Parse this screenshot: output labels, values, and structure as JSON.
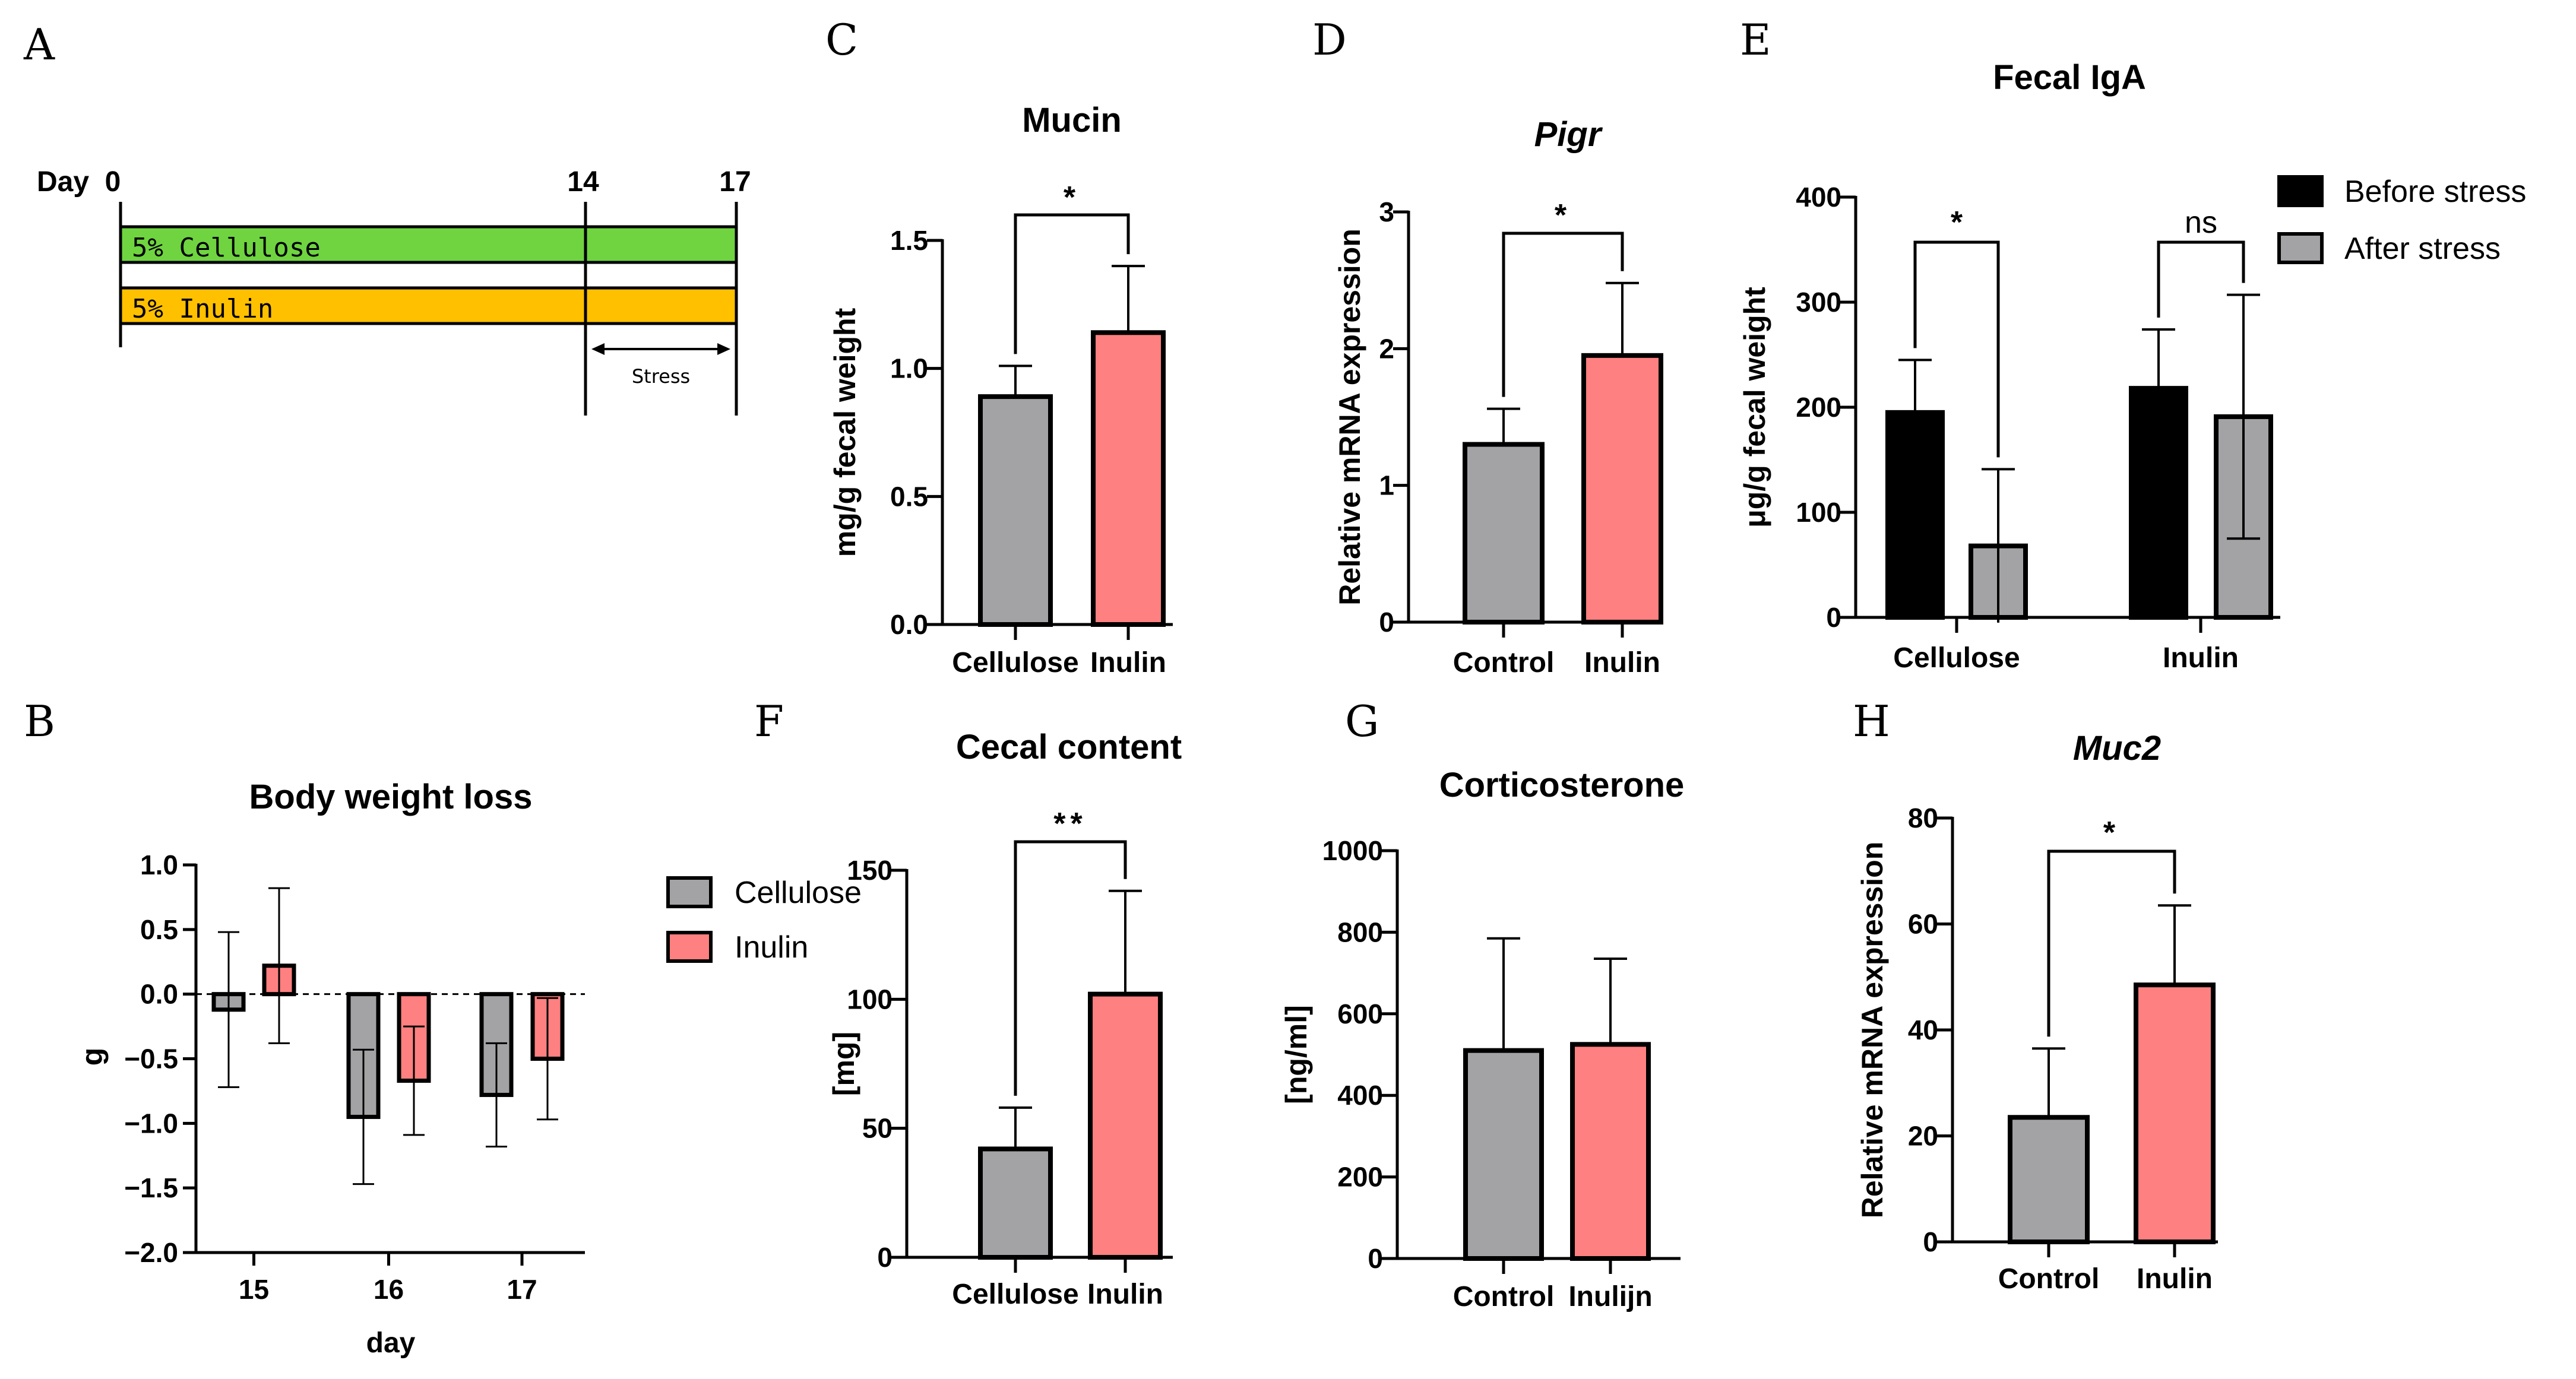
{
  "colors": {
    "gray": "#a3a3a6",
    "pink": "#ff8080",
    "black": "#000000",
    "green": "#6fd440",
    "yellow": "#ffc000"
  },
  "panels": {
    "A": {
      "label": "A",
      "day_label": "Day",
      "days": [
        "0",
        "14",
        "17"
      ],
      "bars": [
        "5% Cellulose",
        "5% Inulin"
      ],
      "stress_label": "Stress"
    },
    "B": {
      "label": "B"
    },
    "C": {
      "label": "C"
    },
    "D": {
      "label": "D"
    },
    "E": {
      "label": "E"
    },
    "F": {
      "label": "F"
    },
    "G": {
      "label": "G"
    },
    "H": {
      "label": "H"
    }
  },
  "chart_data": [
    {
      "id": "B",
      "type": "bar",
      "title": "Body weight loss",
      "xlabel": "day",
      "ylabel": "g",
      "ylim": [
        -2.0,
        1.0
      ],
      "yticks": [
        "1.0",
        "0.5",
        "0.0",
        "-0.5",
        "-1.0",
        "-1.5",
        "-2.0"
      ],
      "categories": [
        "15",
        "16",
        "17"
      ],
      "series": [
        {
          "name": "Cellulose",
          "values": [
            -0.12,
            -0.95,
            -0.78
          ],
          "errors": [
            0.6,
            0.52,
            0.4
          ]
        },
        {
          "name": "Inulin",
          "values": [
            0.22,
            -0.67,
            -0.5
          ],
          "errors": [
            0.6,
            0.42,
            0.47
          ]
        }
      ],
      "legend": [
        "Cellulose",
        "Inulin"
      ]
    },
    {
      "id": "C",
      "type": "bar",
      "title": "Mucin",
      "ylabel": "mg/g fecal weight",
      "ylim": [
        0,
        1.5
      ],
      "yticks": [
        "0.0",
        "0.5",
        "1.0",
        "1.5"
      ],
      "categories": [
        "Cellulose",
        "Inulin"
      ],
      "values": [
        0.89,
        1.14
      ],
      "errors": [
        0.12,
        0.26
      ],
      "significance": "*"
    },
    {
      "id": "D",
      "type": "bar",
      "title": "Pigr",
      "ylabel": "Relative mRNA expression",
      "ylim": [
        0,
        3
      ],
      "yticks": [
        "0",
        "1",
        "2",
        "3"
      ],
      "categories": [
        "Control",
        "Inulin"
      ],
      "values": [
        1.3,
        1.95
      ],
      "errors": [
        0.26,
        0.53
      ],
      "significance": "*"
    },
    {
      "id": "E",
      "type": "bar",
      "title": "Fecal IgA",
      "ylabel": "μg/g fecal weight",
      "ylim": [
        0,
        400
      ],
      "yticks": [
        "0",
        "100",
        "200",
        "300",
        "400"
      ],
      "categories": [
        "Cellulose",
        "Inulin"
      ],
      "series": [
        {
          "name": "Before stress",
          "values": [
            195,
            218
          ],
          "errors": [
            50,
            56
          ]
        },
        {
          "name": "After stress",
          "values": [
            68,
            191
          ],
          "errors": [
            73,
            116
          ]
        }
      ],
      "significance": [
        "*",
        "ns"
      ],
      "legend": [
        "Before stress",
        "After stress"
      ]
    },
    {
      "id": "F",
      "type": "bar",
      "title": "Cecal content",
      "ylabel": "[mg]",
      "ylim": [
        0,
        150
      ],
      "yticks": [
        "0",
        "50",
        "100",
        "150"
      ],
      "categories": [
        "Cellulose",
        "Inulin"
      ],
      "values": [
        42,
        102
      ],
      "errors": [
        16,
        40
      ],
      "significance": "**"
    },
    {
      "id": "G",
      "type": "bar",
      "title": "Corticosterone",
      "ylabel": "[ng/ml]",
      "ylim": [
        0,
        1000
      ],
      "yticks": [
        "0",
        "200",
        "400",
        "600",
        "800",
        "1000"
      ],
      "categories": [
        "Control",
        "Inulijn"
      ],
      "values": [
        510,
        525
      ],
      "errors": [
        275,
        210
      ]
    },
    {
      "id": "H",
      "type": "bar",
      "title": "Muc2",
      "ylabel": "Relative mRNA expression",
      "ylim": [
        0,
        80
      ],
      "yticks": [
        "0",
        "20",
        "40",
        "60",
        "80"
      ],
      "categories": [
        "Control",
        "Inulin"
      ],
      "values": [
        23.5,
        48.5
      ],
      "errors": [
        13,
        15
      ],
      "significance": "*"
    }
  ]
}
